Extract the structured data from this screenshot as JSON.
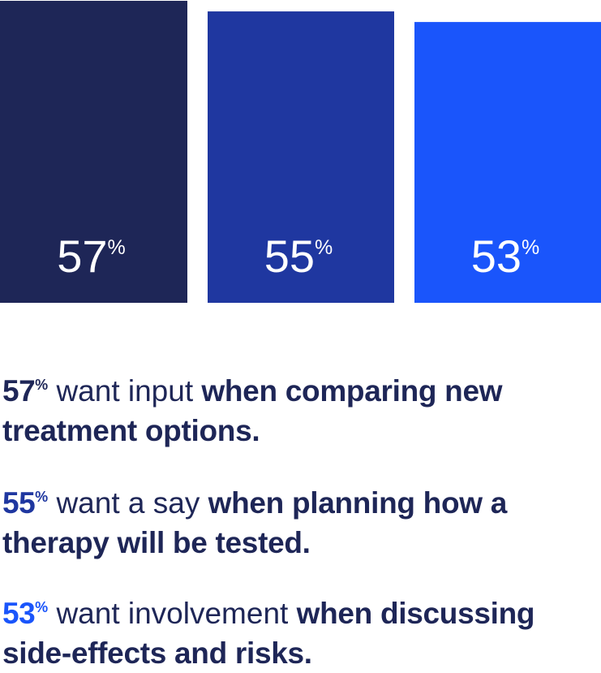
{
  "chart_data": {
    "type": "bar",
    "categories": [
      "57%",
      "55%",
      "53%"
    ],
    "values": [
      57,
      55,
      53
    ],
    "unit": "%",
    "bar_colors": [
      "#1e2657",
      "#1f37a0",
      "#1a55fb"
    ]
  },
  "statements": [
    {
      "percent": "57",
      "percent_sign": "%",
      "percent_color": "#1e2657",
      "plain": "want input",
      "strong": "when comparing new treatment options."
    },
    {
      "percent": "55",
      "percent_sign": "%",
      "percent_color": "#1f37a0",
      "plain": "want a say",
      "strong": "when planning how a therapy will be tested."
    },
    {
      "percent": "53",
      "percent_sign": "%",
      "percent_color": "#1a55fb",
      "plain": "want involvement",
      "strong": "when discussing side-effects and risks."
    }
  ],
  "colors": {
    "text": "#1e2657"
  }
}
